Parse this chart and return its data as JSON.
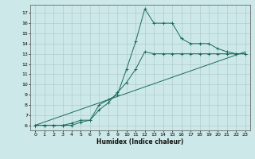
{
  "title": "",
  "xlabel": "Humidex (Indice chaleur)",
  "xlim": [
    -0.5,
    23.5
  ],
  "ylim": [
    5.5,
    17.8
  ],
  "xticks": [
    0,
    1,
    2,
    3,
    4,
    5,
    6,
    7,
    8,
    9,
    10,
    11,
    12,
    13,
    14,
    15,
    16,
    17,
    18,
    19,
    20,
    21,
    22,
    23
  ],
  "yticks": [
    6,
    7,
    8,
    9,
    10,
    11,
    12,
    13,
    14,
    15,
    16,
    17
  ],
  "bg_color": "#cce8e8",
  "grid_color": "#b0cccc",
  "line_color": "#1a6b5a",
  "series1_x": [
    0,
    1,
    2,
    3,
    4,
    5,
    6,
    7,
    8,
    9,
    10,
    11,
    12,
    13,
    14,
    15,
    16,
    17,
    18,
    19,
    20,
    21,
    22,
    23
  ],
  "series1_y": [
    6.0,
    6.0,
    6.0,
    6.0,
    6.2,
    6.5,
    6.5,
    8.0,
    8.5,
    9.0,
    11.5,
    14.2,
    17.4,
    16.0,
    16.0,
    16.0,
    14.5,
    14.0,
    14.0,
    14.0,
    13.5,
    13.2,
    13.0,
    13.0
  ],
  "series2_x": [
    0,
    1,
    2,
    3,
    4,
    5,
    6,
    7,
    8,
    9,
    10,
    11,
    12,
    13,
    14,
    15,
    16,
    17,
    18,
    19,
    20,
    21,
    22,
    23
  ],
  "series2_y": [
    6.0,
    6.0,
    6.0,
    6.0,
    6.0,
    6.3,
    6.5,
    7.5,
    8.2,
    9.2,
    10.2,
    11.5,
    13.2,
    13.0,
    13.0,
    13.0,
    13.0,
    13.0,
    13.0,
    13.0,
    13.0,
    13.0,
    13.0,
    13.0
  ],
  "series3_x": [
    0,
    23
  ],
  "series3_y": [
    6.0,
    13.2
  ]
}
